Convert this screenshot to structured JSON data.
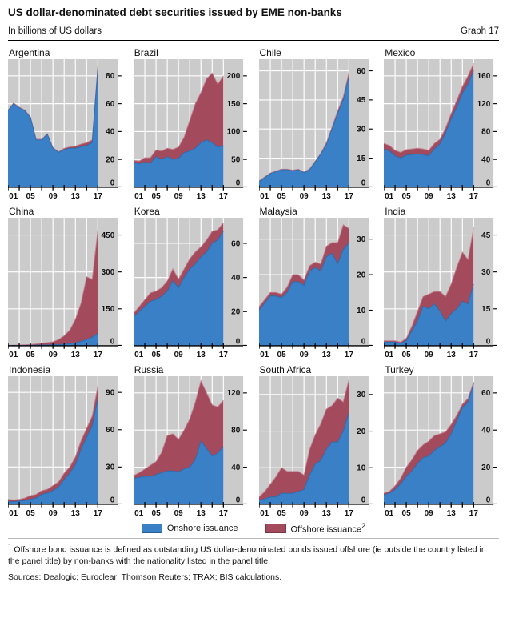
{
  "header": {
    "title": "US dollar-denominated debt securities issued by EME non-banks",
    "subtitle": "In billions of US dollars",
    "graph_label": "Graph 17"
  },
  "legend": {
    "onshore_label": "Onshore issuance",
    "offshore_label": "Offshore issuance",
    "offshore_sup": "2"
  },
  "footnote": {
    "sup": "1",
    "text": " Offshore bond issuance is defined as outstanding US dollar-denominated bonds issued offshore (ie outside the country listed in the panel title) by non-banks with the nationality listed in the panel title."
  },
  "sources": "Sources: Dealogic; Euroclear; Thomson Reuters; TRAX; BIS calculations.",
  "chart_data": {
    "type": "area",
    "stacked": true,
    "title": "US dollar-denominated debt securities issued by EME non-banks",
    "ylabel": "Billions of US dollars",
    "legend_position": "bottom",
    "grid": true,
    "series_names": [
      "Onshore issuance",
      "Offshore issuance"
    ],
    "x_years": [
      2001,
      2002,
      2003,
      2004,
      2005,
      2006,
      2007,
      2008,
      2009,
      2010,
      2011,
      2012,
      2013,
      2014,
      2015,
      2016,
      2017
    ],
    "x_tick_years": [
      2001,
      2005,
      2009,
      2013,
      2017
    ],
    "x_tick_labels": [
      "01",
      "05",
      "09",
      "13",
      "17"
    ],
    "colors": {
      "onshore": "#3a80c6",
      "onshore_edge": "#2d6cae",
      "offshore": "#a34a5c",
      "offshore_edge": "#c27d8d",
      "plot_bg": "#cbcbcb",
      "grid": "#ffffff",
      "axis": "#000000",
      "label": "#111111"
    },
    "panels": [
      {
        "title": "Argentina",
        "yticks": [
          0,
          20,
          40,
          60,
          80
        ],
        "ymax": 92,
        "onshore": [
          55,
          60,
          57,
          55,
          50,
          34,
          34,
          38,
          28,
          25,
          27,
          28,
          28,
          29,
          30,
          32,
          85
        ],
        "offshore": [
          0.5,
          0.5,
          0.5,
          0.5,
          0.5,
          0.5,
          0.5,
          0.5,
          0.5,
          0.5,
          1,
          1,
          1.5,
          2,
          2,
          2,
          2
        ]
      },
      {
        "title": "Brazil",
        "yticks": [
          0,
          50,
          100,
          150,
          200
        ],
        "ymax": 230,
        "onshore": [
          45,
          42,
          45,
          43,
          55,
          50,
          55,
          50,
          52,
          62,
          65,
          70,
          80,
          85,
          80,
          72,
          75
        ],
        "offshore": [
          3,
          5,
          8,
          10,
          12,
          15,
          15,
          18,
          20,
          28,
          55,
          80,
          90,
          110,
          125,
          113,
          125
        ]
      },
      {
        "title": "Chile",
        "yticks": [
          0,
          15,
          30,
          45,
          60
        ],
        "ymax": 66,
        "onshore": [
          3,
          5,
          7,
          8,
          9,
          9,
          8.5,
          9,
          7.5,
          9,
          13,
          17,
          22,
          30,
          38,
          45,
          57
        ],
        "offshore": [
          0.3,
          0.3,
          0.3,
          0.3,
          0.3,
          0.3,
          0.3,
          0.3,
          0.3,
          0.5,
          0.5,
          0.5,
          1,
          1,
          1.5,
          1.5,
          2
        ]
      },
      {
        "title": "Mexico",
        "yticks": [
          0,
          40,
          80,
          120,
          160
        ],
        "ymax": 184,
        "onshore": [
          55,
          52,
          45,
          42,
          46,
          47,
          48,
          47,
          45,
          55,
          62,
          78,
          98,
          115,
          135,
          148,
          168
        ],
        "offshore": [
          8,
          8,
          8,
          8,
          8,
          8,
          8,
          8,
          8,
          8,
          7,
          7,
          8,
          10,
          10,
          12,
          10
        ]
      },
      {
        "title": "China",
        "yticks": [
          0,
          150,
          300,
          450
        ],
        "ymax": 520,
        "onshore": [
          1,
          1,
          1,
          1.5,
          2,
          2.5,
          3,
          3,
          4,
          5,
          6,
          8,
          12,
          18,
          25,
          35,
          50
        ],
        "offshore": [
          1,
          1.5,
          2,
          2.5,
          3,
          5,
          7,
          10,
          12,
          20,
          35,
          55,
          95,
          155,
          255,
          235,
          420
        ]
      },
      {
        "title": "Korea",
        "yticks": [
          0,
          20,
          40,
          60
        ],
        "ymax": 75,
        "onshore": [
          17,
          20,
          23,
          26,
          27,
          29,
          32,
          38,
          34,
          40,
          45,
          48,
          52,
          55,
          60,
          62,
          67
        ],
        "offshore": [
          2,
          3,
          4,
          5,
          5,
          5,
          6,
          7,
          5,
          5,
          6,
          7,
          6,
          7,
          7,
          6,
          5
        ]
      },
      {
        "title": "Malaysia",
        "yticks": [
          0,
          10,
          20,
          30
        ],
        "ymax": 36,
        "onshore": [
          10,
          12,
          14,
          14,
          13.5,
          15,
          18,
          18,
          17,
          21,
          22,
          21,
          25,
          26,
          23,
          27,
          29
        ],
        "offshore": [
          1,
          1,
          1,
          1,
          1,
          1.5,
          2,
          2,
          1.5,
          1.5,
          1.5,
          2,
          3,
          3,
          6,
          7,
          4
        ]
      },
      {
        "title": "India",
        "yticks": [
          0,
          15,
          30,
          45
        ],
        "ymax": 52,
        "onshore": [
          1.5,
          1.5,
          1.5,
          1,
          2,
          6,
          10,
          16,
          15,
          17,
          14,
          10,
          13,
          15,
          18,
          17,
          25
        ],
        "offshore": [
          0.5,
          0.5,
          0.5,
          0.5,
          1,
          2,
          4,
          4,
          6,
          5,
          8,
          10,
          12,
          17,
          20,
          18,
          23
        ]
      },
      {
        "title": "Indonesia",
        "yticks": [
          0,
          30,
          60,
          90
        ],
        "ymax": 103,
        "onshore": [
          2,
          2,
          2.5,
          3,
          4,
          5,
          8,
          9,
          11,
          14,
          20,
          25,
          32,
          44,
          54,
          63,
          85
        ],
        "offshore": [
          2,
          1.5,
          1.5,
          2,
          3,
          3,
          3,
          3,
          4,
          4,
          5,
          5,
          6,
          7,
          7,
          8,
          10
        ]
      },
      {
        "title": "Russia",
        "yticks": [
          0,
          40,
          80,
          120
        ],
        "ymax": 138,
        "onshore": [
          28,
          29,
          30,
          30,
          32,
          34,
          36,
          36,
          35,
          38,
          40,
          48,
          68,
          60,
          52,
          55,
          62
        ],
        "offshore": [
          3,
          5,
          8,
          12,
          14,
          22,
          38,
          40,
          35,
          42,
          52,
          62,
          65,
          60,
          55,
          50,
          50
        ]
      },
      {
        "title": "South Africa",
        "yticks": [
          0,
          10,
          20,
          30
        ],
        "ymax": 35,
        "onshore": [
          1,
          1.5,
          2,
          2,
          3,
          3,
          3,
          3.5,
          4,
          8,
          11,
          12,
          15,
          17,
          17,
          20,
          25
        ],
        "offshore": [
          1,
          2,
          3.5,
          5.5,
          7,
          6,
          6,
          5.5,
          4,
          7,
          8,
          10,
          11,
          10,
          12,
          8,
          9
        ]
      },
      {
        "title": "Turkey",
        "yticks": [
          0,
          20,
          40,
          60
        ],
        "ymax": 69,
        "onshore": [
          5,
          6,
          8,
          11,
          15,
          18,
          22,
          25,
          26,
          29,
          31,
          33,
          38,
          45,
          52,
          55,
          65
        ],
        "offshore": [
          1,
          1,
          2,
          3,
          5,
          6,
          7,
          7,
          8,
          8,
          7,
          6,
          5,
          3,
          2,
          2,
          1
        ]
      }
    ]
  }
}
